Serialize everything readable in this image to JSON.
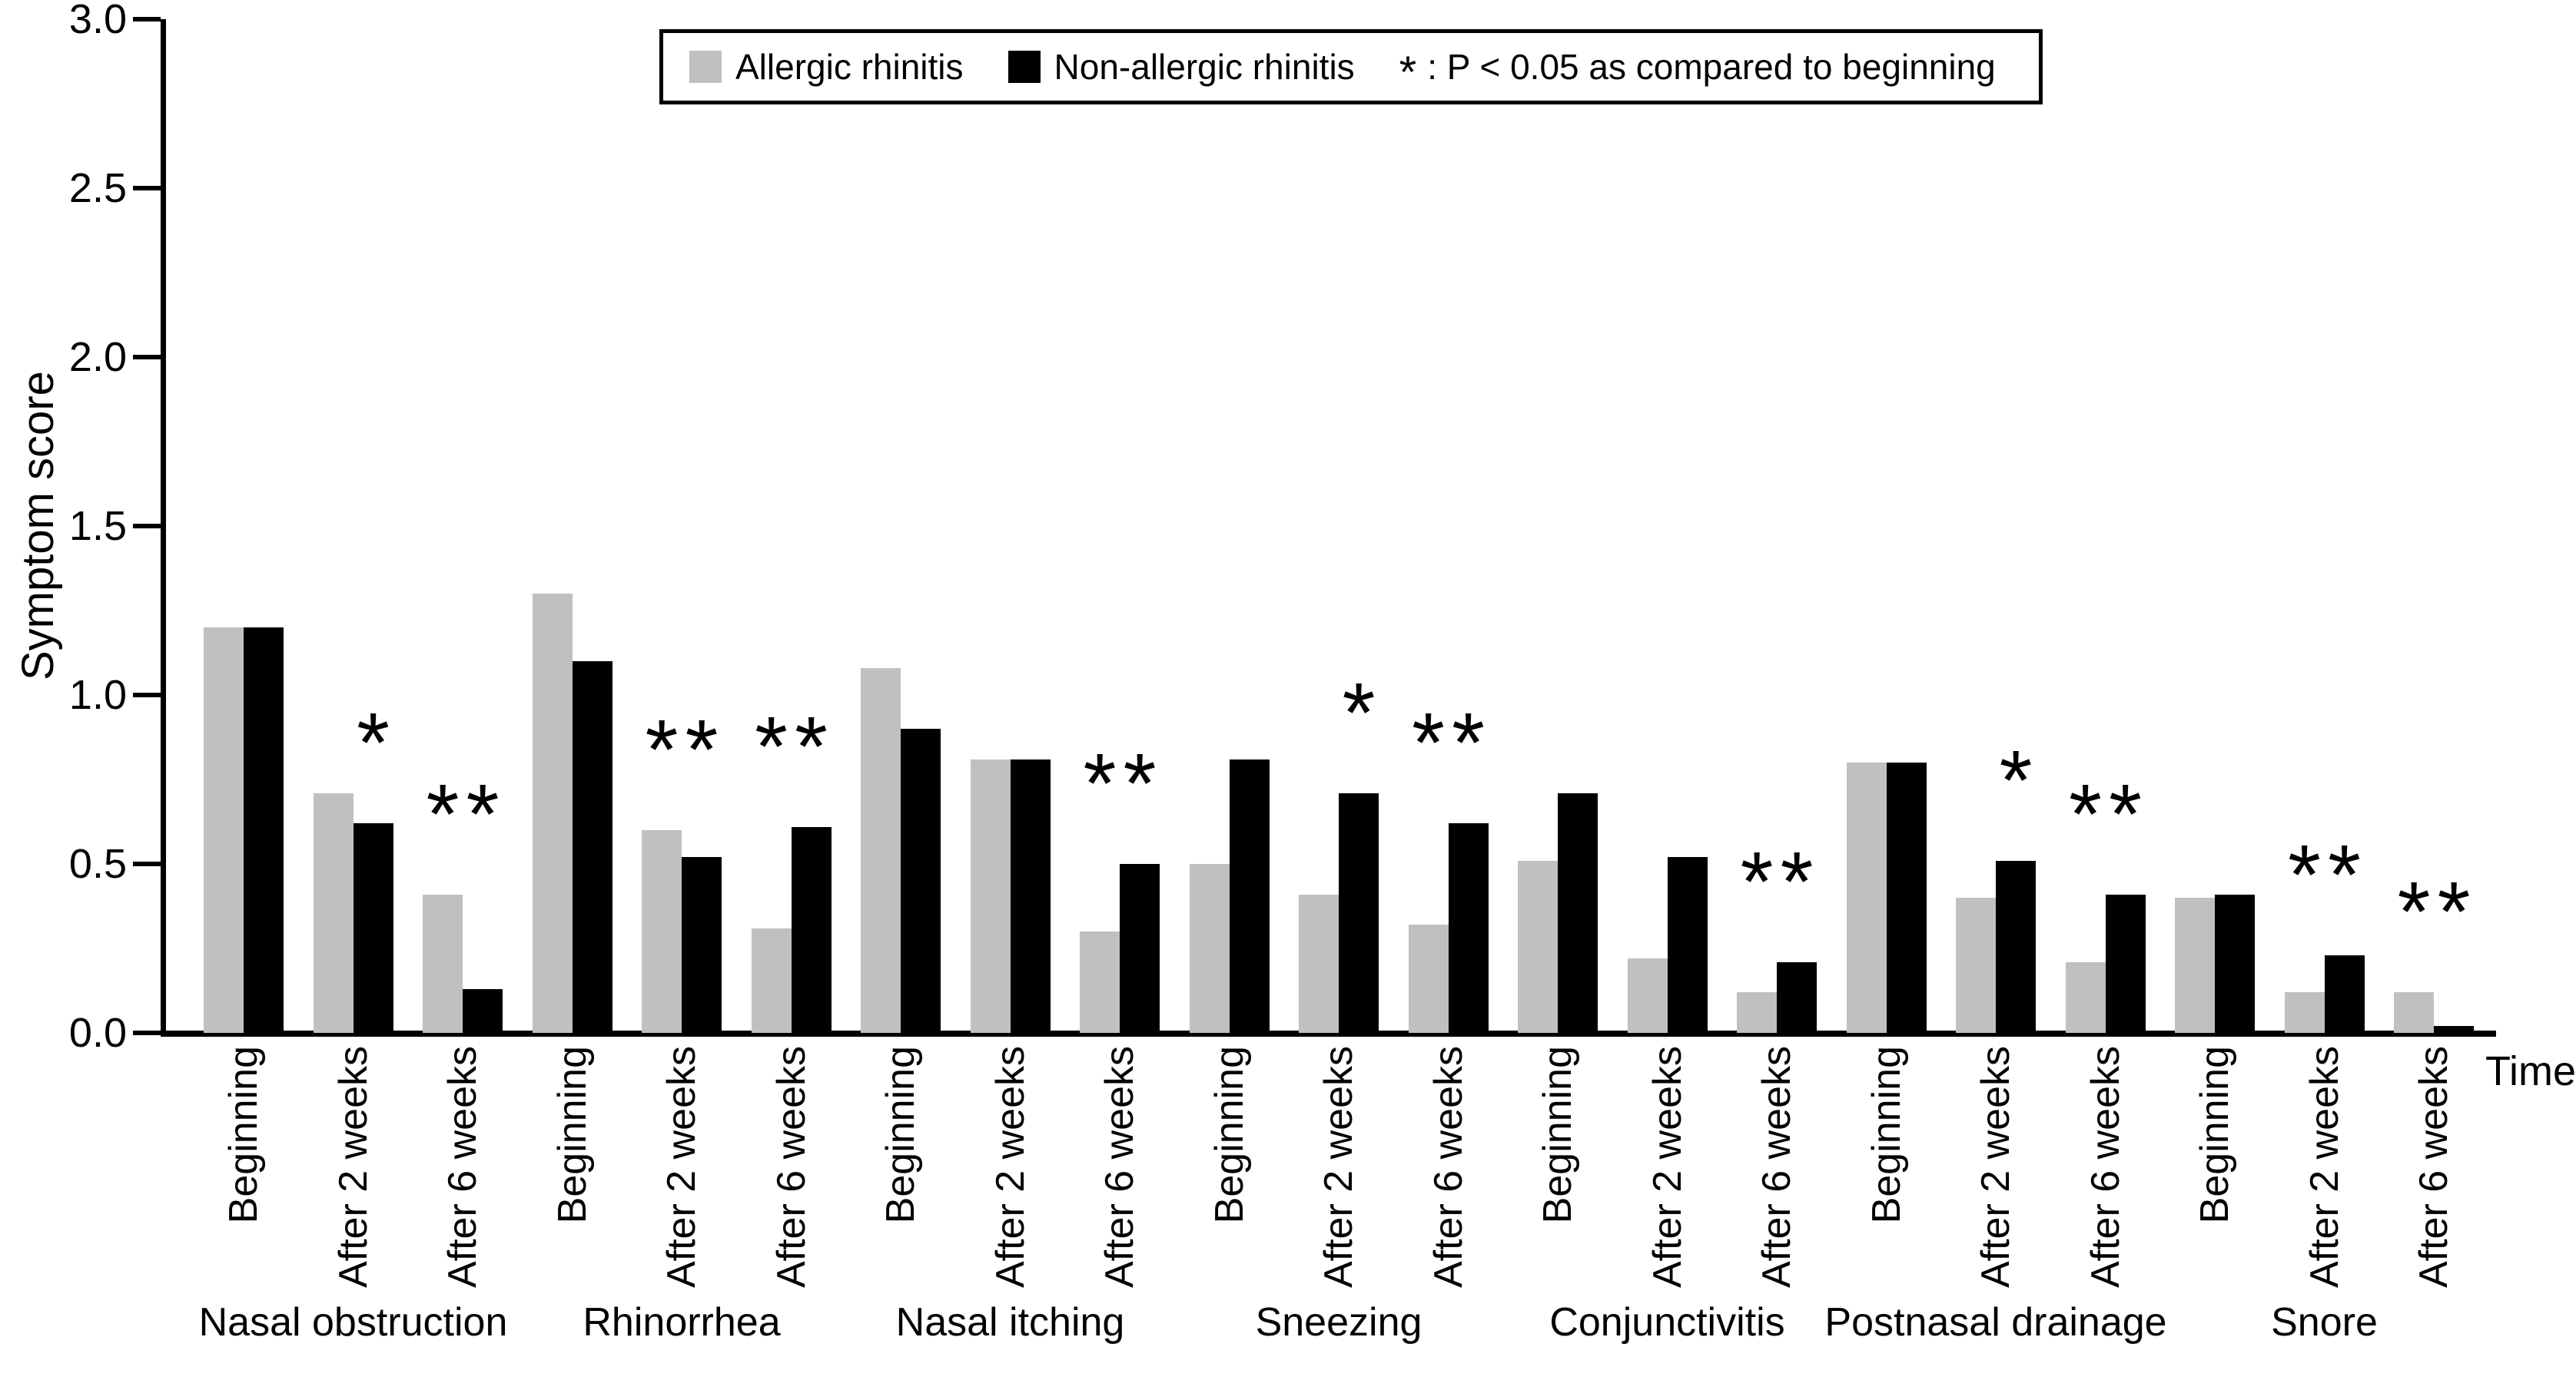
{
  "chart_data": {
    "type": "bar",
    "title": "",
    "ylabel": "Symptom score",
    "xlabel": "Time",
    "ylim": [
      0.0,
      3.0
    ],
    "ytick_labels": [
      "0.0",
      "0.5",
      "1.0",
      "1.5",
      "2.0",
      "2.5",
      "3.0"
    ],
    "ytick_values": [
      0.0,
      0.5,
      1.0,
      1.5,
      2.0,
      2.5,
      3.0
    ],
    "grid": false,
    "legend_position": "top-center",
    "series_names": [
      "Allergic rhinitis",
      "Non-allergic rhinitis"
    ],
    "time_points": [
      "Beginning",
      "After 2 weeks",
      "After 6 weeks"
    ],
    "legend": {
      "items": [
        {
          "label": "Allergic rhinitis",
          "swatch_color": "#c0c0c0"
        },
        {
          "label": "Non-allergic rhinitis",
          "swatch_color": "#000000"
        }
      ],
      "note_symbol": "*",
      "note_text": ": P < 0.05 as compared to beginning"
    },
    "colors": {
      "allergic": "#c0c0c0",
      "non_allergic": "#000000"
    },
    "significance_marker": "*",
    "significance_meaning": "P < 0.05 as compared to beginning",
    "groups": [
      {
        "symptom": "Nasal obstruction",
        "allergic": [
          1.2,
          0.71,
          0.41
        ],
        "non_allergic": [
          1.2,
          0.62,
          0.13
        ],
        "sig_allergic": [
          false,
          false,
          true
        ],
        "sig_non_allergic": [
          false,
          true,
          true
        ]
      },
      {
        "symptom": "Rhinorrhea",
        "allergic": [
          1.3,
          0.6,
          0.31
        ],
        "non_allergic": [
          1.1,
          0.52,
          0.61
        ],
        "sig_allergic": [
          false,
          true,
          true
        ],
        "sig_non_allergic": [
          false,
          true,
          true
        ]
      },
      {
        "symptom": "Nasal itching",
        "allergic": [
          1.08,
          0.81,
          0.3
        ],
        "non_allergic": [
          0.9,
          0.81,
          0.5
        ],
        "sig_allergic": [
          false,
          false,
          true
        ],
        "sig_non_allergic": [
          false,
          false,
          true
        ]
      },
      {
        "symptom": "Sneezing",
        "allergic": [
          0.5,
          0.41,
          0.32
        ],
        "non_allergic": [
          0.81,
          0.71,
          0.62
        ],
        "sig_allergic": [
          false,
          false,
          true
        ],
        "sig_non_allergic": [
          false,
          true,
          true
        ]
      },
      {
        "symptom": "Conjunctivitis",
        "allergic": [
          0.51,
          0.22,
          0.12
        ],
        "non_allergic": [
          0.71,
          0.52,
          0.21
        ],
        "sig_allergic": [
          false,
          false,
          true
        ],
        "sig_non_allergic": [
          false,
          false,
          true
        ]
      },
      {
        "symptom": "Postnasal drainage",
        "allergic": [
          0.8,
          0.4,
          0.21
        ],
        "non_allergic": [
          0.8,
          0.51,
          0.41
        ],
        "sig_allergic": [
          false,
          false,
          true
        ],
        "sig_non_allergic": [
          false,
          true,
          true
        ]
      },
      {
        "symptom": "Snore",
        "allergic": [
          0.4,
          0.12,
          0.12
        ],
        "non_allergic": [
          0.41,
          0.23,
          0.02
        ],
        "sig_allergic": [
          false,
          true,
          true
        ],
        "sig_non_allergic": [
          false,
          true,
          true
        ]
      }
    ]
  }
}
